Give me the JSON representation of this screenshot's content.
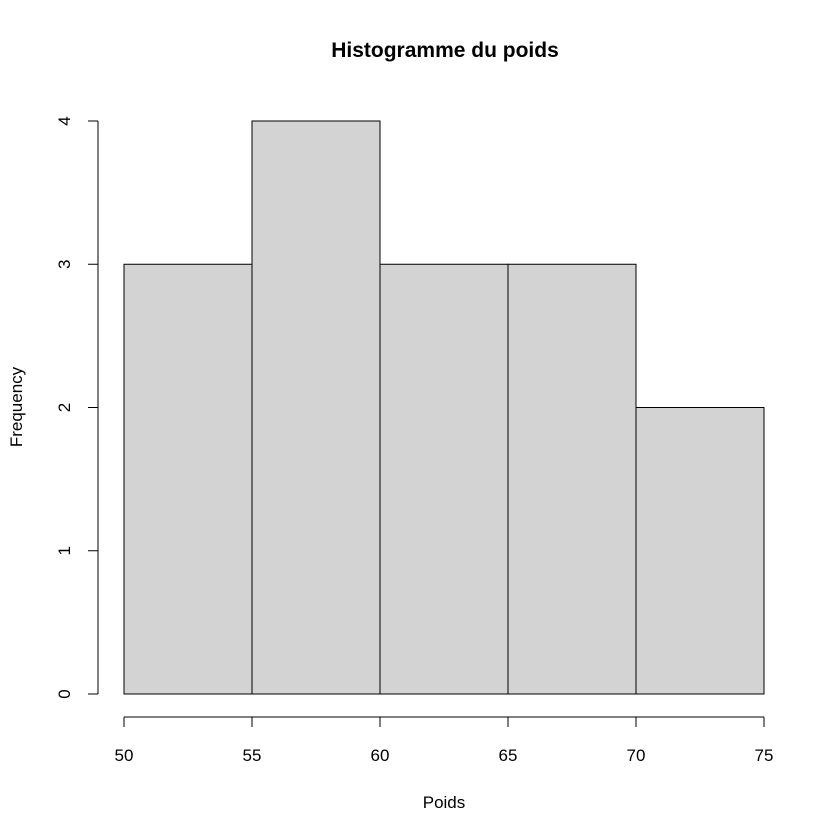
{
  "chart_data": {
    "type": "bar",
    "title": "Histogramme du poids",
    "xlabel": "Poids",
    "ylabel": "Frequency",
    "bins": [
      {
        "start": 50,
        "end": 55,
        "count": 3
      },
      {
        "start": 55,
        "end": 60,
        "count": 4
      },
      {
        "start": 60,
        "end": 65,
        "count": 3
      },
      {
        "start": 65,
        "end": 70,
        "count": 3
      },
      {
        "start": 70,
        "end": 75,
        "count": 2
      }
    ],
    "xlim": [
      50,
      75
    ],
    "ylim": [
      0,
      4
    ],
    "xticks": [
      50,
      55,
      60,
      65,
      70,
      75
    ],
    "yticks": [
      0,
      1,
      2,
      3,
      4
    ],
    "bar_color": "#d3d3d3",
    "border_color": "#000000",
    "grid": false,
    "legend": "none"
  }
}
